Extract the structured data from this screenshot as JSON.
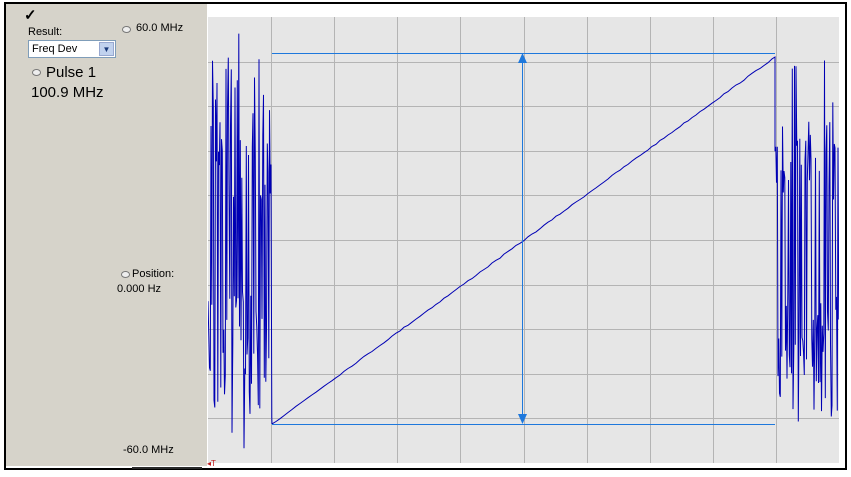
{
  "left_panel": {
    "check_glyph": "✓",
    "result_label": "Result:",
    "result_select": {
      "value": "Freq Dev"
    },
    "pulse": {
      "name": "Pulse 1",
      "value": "100.9 MHz"
    },
    "axis_top": "60.0 MHz",
    "position_label": "Position:",
    "position_value": "0.000 Hz",
    "axis_bottom": "-60.0 MHz"
  },
  "plot": {
    "trigger_marker": "T",
    "colors": {
      "background": "#e6e6e6",
      "grid": "#b4b4b4",
      "trace": "#0000b4",
      "measurement": "#1e78dc"
    }
  }
}
